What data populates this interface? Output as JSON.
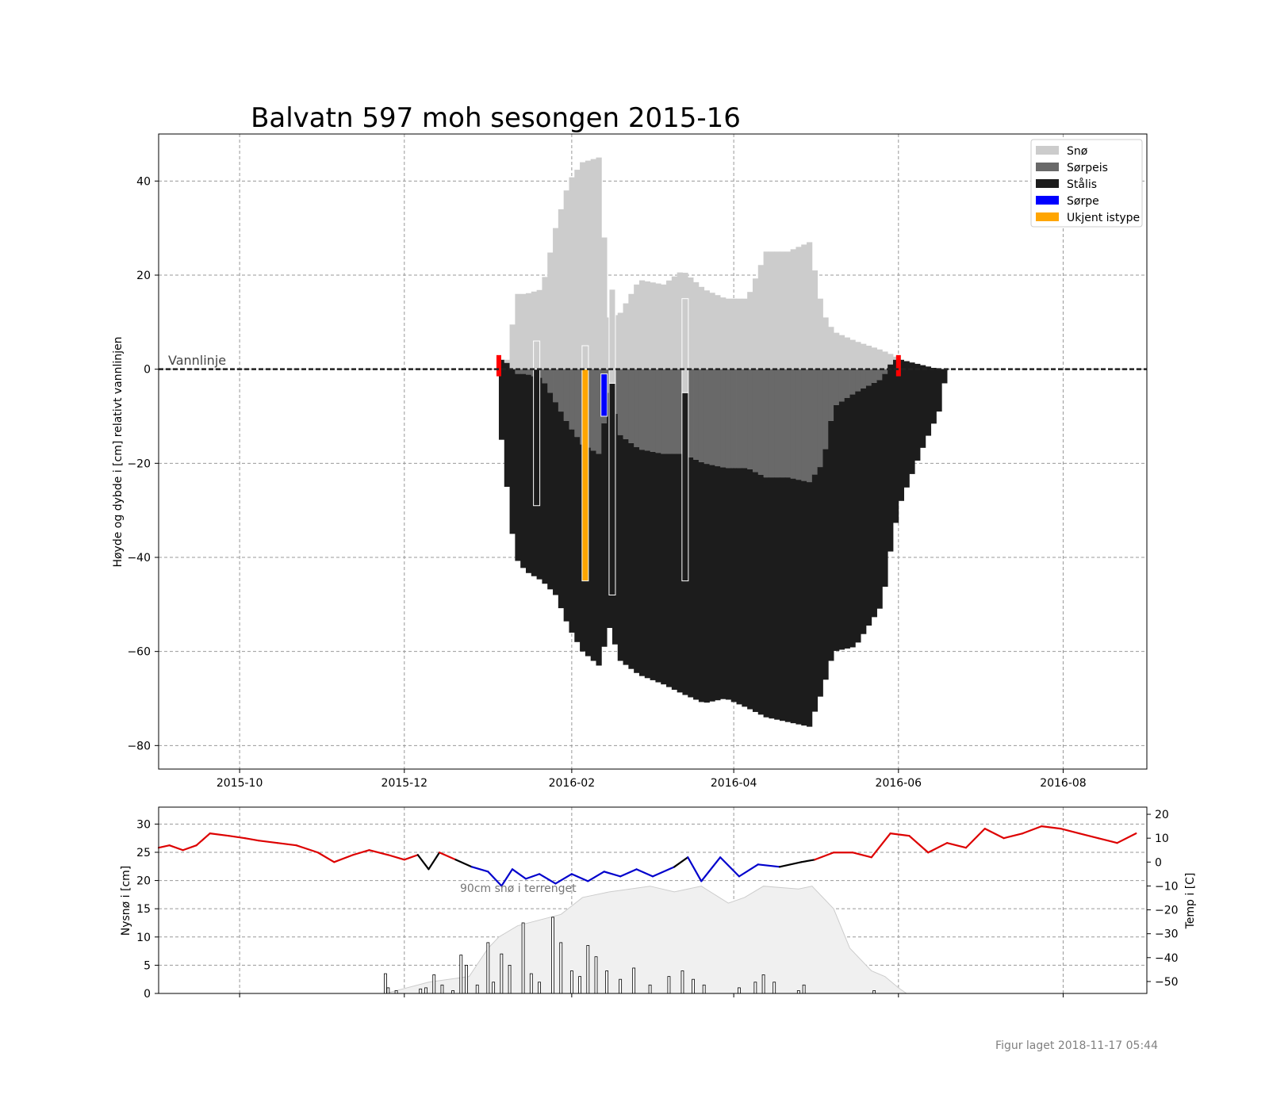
{
  "figure": {
    "title": "Balvatn 597 moh sesongen 2015-16",
    "footer": "Figur laget 2018-11-17 05:44",
    "waterline_label": "Vannlinje",
    "annotation": "90cm snø i terrenget"
  },
  "chart_data": [
    {
      "type": "bar",
      "name": "ice-profile",
      "ylabel": "Høyde og dybde i [cm] relativt vannlinjen",
      "xlim": [
        "2015-09-01",
        "2016-09-01"
      ],
      "ylim": [
        -85,
        50
      ],
      "xticks": [
        {
          "date": "2015-10-01",
          "label": "2015-10"
        },
        {
          "date": "2015-12-01",
          "label": "2015-12"
        },
        {
          "date": "2016-02-01",
          "label": "2016-02"
        },
        {
          "date": "2016-04-01",
          "label": "2016-04"
        },
        {
          "date": "2016-06-01",
          "label": "2016-06"
        },
        {
          "date": "2016-08-01",
          "label": "2016-08"
        }
      ],
      "yticks": [
        40,
        20,
        0,
        -20,
        -40,
        -60,
        -80
      ],
      "grid": true,
      "legend_position": "top-right",
      "legend": [
        {
          "label": "Snø",
          "color": "#cccccc"
        },
        {
          "label": "Sørpeis",
          "color": "#696969"
        },
        {
          "label": "Stålis",
          "color": "#1c1c1c"
        },
        {
          "label": "Sørpe",
          "color": "#0000ff"
        },
        {
          "label": "Ukjent istype",
          "color": "#ffa500"
        }
      ],
      "colors": {
        "snow": "#cccccc",
        "slush_ice": "#696969",
        "black_ice": "#1c1c1c",
        "slush": "#0000ff",
        "unknown": "#ffa500",
        "ice_event": "#ff0000"
      },
      "ice_events": [
        "2016-01-05",
        "2016-06-01"
      ],
      "profile_points": [
        {
          "date": "2016-01-05",
          "snow_top": 0,
          "slush_bottom": 2,
          "ice_bottom": -15
        },
        {
          "date": "2016-01-08",
          "snow_top": 3,
          "slush_bottom": 1,
          "ice_bottom": -30
        },
        {
          "date": "2016-01-10",
          "snow_top": 16,
          "slush_bottom": -1,
          "ice_bottom": -40
        },
        {
          "date": "2016-01-14",
          "snow_top": 16,
          "slush_bottom": -1,
          "ice_bottom": -43
        },
        {
          "date": "2016-01-20",
          "snow_top": 17,
          "slush_bottom": -2,
          "ice_bottom": -45
        },
        {
          "date": "2016-01-25",
          "snow_top": 30,
          "slush_bottom": -7,
          "ice_bottom": -48
        },
        {
          "date": "2016-01-30",
          "snow_top": 40,
          "slush_bottom": -12,
          "ice_bottom": -55
        },
        {
          "date": "2016-02-04",
          "snow_top": 44,
          "slush_bottom": -16,
          "ice_bottom": -60
        },
        {
          "date": "2016-02-10",
          "snow_top": 45,
          "slush_bottom": -18,
          "ice_bottom": -63
        },
        {
          "date": "2016-02-14",
          "snow_top": 11,
          "slush_bottom": -5,
          "ice_bottom": -55
        },
        {
          "date": "2016-02-18",
          "snow_top": 12,
          "slush_bottom": -14,
          "ice_bottom": -62
        },
        {
          "date": "2016-02-25",
          "snow_top": 19,
          "slush_bottom": -17,
          "ice_bottom": -65
        },
        {
          "date": "2016-03-05",
          "snow_top": 18,
          "slush_bottom": -18,
          "ice_bottom": -67
        },
        {
          "date": "2016-03-12",
          "snow_top": 21,
          "slush_bottom": -18,
          "ice_bottom": -69
        },
        {
          "date": "2016-03-20",
          "snow_top": 17,
          "slush_bottom": -20,
          "ice_bottom": -71
        },
        {
          "date": "2016-03-28",
          "snow_top": 15,
          "slush_bottom": -21,
          "ice_bottom": -70
        },
        {
          "date": "2016-04-05",
          "snow_top": 15,
          "slush_bottom": -21,
          "ice_bottom": -72
        },
        {
          "date": "2016-04-12",
          "snow_top": 25,
          "slush_bottom": -23,
          "ice_bottom": -74
        },
        {
          "date": "2016-04-20",
          "snow_top": 25,
          "slush_bottom": -23,
          "ice_bottom": -75
        },
        {
          "date": "2016-04-28",
          "snow_top": 27,
          "slush_bottom": -24,
          "ice_bottom": -76
        },
        {
          "date": "2016-05-03",
          "snow_top": 12,
          "slush_bottom": -20,
          "ice_bottom": -68
        },
        {
          "date": "2016-05-07",
          "snow_top": 8,
          "slush_bottom": -8,
          "ice_bottom": -60
        },
        {
          "date": "2016-05-15",
          "snow_top": 6,
          "slush_bottom": -5,
          "ice_bottom": -59
        },
        {
          "date": "2016-05-25",
          "snow_top": 4,
          "slush_bottom": -2,
          "ice_bottom": -50
        },
        {
          "date": "2016-05-29",
          "snow_top": 3,
          "slush_bottom": 2,
          "ice_bottom": -35
        },
        {
          "date": "2016-06-01",
          "snow_top": 2,
          "slush_bottom": 2,
          "ice_bottom": -28
        },
        {
          "date": "2016-06-08",
          "snow_top": 1,
          "slush_bottom": 1,
          "ice_bottom": -18
        },
        {
          "date": "2016-06-15",
          "snow_top": 0,
          "slush_bottom": 0,
          "ice_bottom": -9
        },
        {
          "date": "2016-06-18",
          "snow_top": 0,
          "slush_bottom": 0,
          "ice_bottom": 0
        }
      ],
      "measurement_columns": [
        {
          "date": "2016-01-19",
          "layers": [
            {
              "from": 6,
              "to": 0,
              "kind": "snow"
            },
            {
              "from": 0,
              "to": -29,
              "kind": "black_ice"
            }
          ]
        },
        {
          "date": "2016-02-06",
          "layers": [
            {
              "from": 5,
              "to": 0,
              "kind": "snow"
            },
            {
              "from": 0,
              "to": -45,
              "kind": "unknown"
            }
          ]
        },
        {
          "date": "2016-02-13",
          "layers": [
            {
              "from": -1,
              "to": -10,
              "kind": "slush"
            }
          ]
        },
        {
          "date": "2016-02-16",
          "layers": [
            {
              "from": 17,
              "to": -3,
              "kind": "snow"
            },
            {
              "from": -3,
              "to": -48,
              "kind": "black_ice"
            }
          ]
        },
        {
          "date": "2016-03-14",
          "layers": [
            {
              "from": 15,
              "to": -5,
              "kind": "snow"
            },
            {
              "from": -5,
              "to": -45,
              "kind": "black_ice"
            }
          ]
        }
      ]
    },
    {
      "type": "bar",
      "name": "weather",
      "ylabel": "Nysnø i [cm]",
      "y2label": "Temp i [C]",
      "ylim": [
        0,
        33
      ],
      "y2lim": [
        -55,
        23
      ],
      "yticks": [
        0,
        5,
        10,
        15,
        20,
        25,
        30
      ],
      "y2ticks": [
        20,
        10,
        0,
        -10,
        -20,
        -30,
        -40,
        -50
      ],
      "grid": true,
      "colors": {
        "temp_warm": "#dd0000",
        "temp_cold": "#0000cc",
        "temp_near_zero": "#000000",
        "snow_depth_fill": "#f0f0f0",
        "snow_depth_line": "#cccccc"
      },
      "new_snow": [
        {
          "date": "2015-11-24",
          "cm": 3.5
        },
        {
          "date": "2015-11-25",
          "cm": 1
        },
        {
          "date": "2015-11-28",
          "cm": 0.5
        },
        {
          "date": "2015-12-07",
          "cm": 0.8
        },
        {
          "date": "2015-12-09",
          "cm": 1
        },
        {
          "date": "2015-12-12",
          "cm": 3.3
        },
        {
          "date": "2015-12-15",
          "cm": 1.5
        },
        {
          "date": "2015-12-19",
          "cm": 0.5
        },
        {
          "date": "2015-12-22",
          "cm": 6.8
        },
        {
          "date": "2015-12-24",
          "cm": 5
        },
        {
          "date": "2015-12-28",
          "cm": 1.5
        },
        {
          "date": "2016-01-01",
          "cm": 9
        },
        {
          "date": "2016-01-03",
          "cm": 2
        },
        {
          "date": "2016-01-06",
          "cm": 7
        },
        {
          "date": "2016-01-09",
          "cm": 5
        },
        {
          "date": "2016-01-14",
          "cm": 12.5
        },
        {
          "date": "2016-01-17",
          "cm": 3.5
        },
        {
          "date": "2016-01-20",
          "cm": 2
        },
        {
          "date": "2016-01-25",
          "cm": 13.5
        },
        {
          "date": "2016-01-28",
          "cm": 9
        },
        {
          "date": "2016-02-01",
          "cm": 4
        },
        {
          "date": "2016-02-04",
          "cm": 3
        },
        {
          "date": "2016-02-07",
          "cm": 8.5
        },
        {
          "date": "2016-02-10",
          "cm": 6.5
        },
        {
          "date": "2016-02-14",
          "cm": 4
        },
        {
          "date": "2016-02-19",
          "cm": 2.5
        },
        {
          "date": "2016-02-24",
          "cm": 4.5
        },
        {
          "date": "2016-03-01",
          "cm": 1.5
        },
        {
          "date": "2016-03-08",
          "cm": 3
        },
        {
          "date": "2016-03-13",
          "cm": 4
        },
        {
          "date": "2016-03-17",
          "cm": 2.5
        },
        {
          "date": "2016-03-21",
          "cm": 1.5
        },
        {
          "date": "2016-04-03",
          "cm": 1
        },
        {
          "date": "2016-04-09",
          "cm": 2
        },
        {
          "date": "2016-04-12",
          "cm": 3.3
        },
        {
          "date": "2016-04-16",
          "cm": 2
        },
        {
          "date": "2016-04-25",
          "cm": 0.5
        },
        {
          "date": "2016-04-27",
          "cm": 1.5
        },
        {
          "date": "2016-05-23",
          "cm": 0.5
        }
      ],
      "snow_depth": [
        {
          "date": "2015-11-24",
          "cm": 0
        },
        {
          "date": "2015-12-10",
          "cm": 2
        },
        {
          "date": "2015-12-25",
          "cm": 3
        },
        {
          "date": "2016-01-01",
          "cm": 8
        },
        {
          "date": "2016-01-05",
          "cm": 10
        },
        {
          "date": "2016-01-12",
          "cm": 12
        },
        {
          "date": "2016-01-20",
          "cm": 13
        },
        {
          "date": "2016-01-28",
          "cm": 14
        },
        {
          "date": "2016-02-05",
          "cm": 17
        },
        {
          "date": "2016-02-15",
          "cm": 18
        },
        {
          "date": "2016-03-01",
          "cm": 19
        },
        {
          "date": "2016-03-10",
          "cm": 18
        },
        {
          "date": "2016-03-20",
          "cm": 19
        },
        {
          "date": "2016-03-30",
          "cm": 16
        },
        {
          "date": "2016-04-05",
          "cm": 17
        },
        {
          "date": "2016-04-12",
          "cm": 19
        },
        {
          "date": "2016-04-25",
          "cm": 18.5
        },
        {
          "date": "2016-04-30",
          "cm": 19
        },
        {
          "date": "2016-05-08",
          "cm": 15
        },
        {
          "date": "2016-05-14",
          "cm": 8
        },
        {
          "date": "2016-05-22",
          "cm": 4
        },
        {
          "date": "2016-05-27",
          "cm": 3
        },
        {
          "date": "2016-06-01",
          "cm": 1
        },
        {
          "date": "2016-06-04",
          "cm": 0
        }
      ],
      "temperature": [
        {
          "date": "2015-09-01",
          "c": 6
        },
        {
          "date": "2015-09-05",
          "c": 7
        },
        {
          "date": "2015-09-10",
          "c": 5
        },
        {
          "date": "2015-09-15",
          "c": 7
        },
        {
          "date": "2015-09-20",
          "c": 12
        },
        {
          "date": "2015-09-27",
          "c": 11
        },
        {
          "date": "2015-10-03",
          "c": 10
        },
        {
          "date": "2015-10-08",
          "c": 9
        },
        {
          "date": "2015-10-15",
          "c": 8
        },
        {
          "date": "2015-10-22",
          "c": 7
        },
        {
          "date": "2015-10-30",
          "c": 4
        },
        {
          "date": "2015-11-05",
          "c": 0
        },
        {
          "date": "2015-11-12",
          "c": 3
        },
        {
          "date": "2015-11-18",
          "c": 5
        },
        {
          "date": "2015-11-25",
          "c": 3
        },
        {
          "date": "2015-12-01",
          "c": 1
        },
        {
          "date": "2015-12-06",
          "c": 3
        },
        {
          "date": "2015-12-10",
          "c": -3
        },
        {
          "date": "2015-12-14",
          "c": 4
        },
        {
          "date": "2015-12-20",
          "c": 1
        },
        {
          "date": "2015-12-26",
          "c": -2
        },
        {
          "date": "2016-01-01",
          "c": -4
        },
        {
          "date": "2016-01-06",
          "c": -10
        },
        {
          "date": "2016-01-10",
          "c": -3
        },
        {
          "date": "2016-01-15",
          "c": -7
        },
        {
          "date": "2016-01-20",
          "c": -5
        },
        {
          "date": "2016-01-26",
          "c": -9
        },
        {
          "date": "2016-02-01",
          "c": -5
        },
        {
          "date": "2016-02-07",
          "c": -8
        },
        {
          "date": "2016-02-13",
          "c": -4
        },
        {
          "date": "2016-02-19",
          "c": -6
        },
        {
          "date": "2016-02-25",
          "c": -3
        },
        {
          "date": "2016-03-02",
          "c": -6
        },
        {
          "date": "2016-03-10",
          "c": -2
        },
        {
          "date": "2016-03-15",
          "c": 2
        },
        {
          "date": "2016-03-20",
          "c": -8
        },
        {
          "date": "2016-03-27",
          "c": 2
        },
        {
          "date": "2016-04-03",
          "c": -6
        },
        {
          "date": "2016-04-10",
          "c": -1
        },
        {
          "date": "2016-04-18",
          "c": -2
        },
        {
          "date": "2016-04-26",
          "c": 0
        },
        {
          "date": "2016-05-01",
          "c": 1
        },
        {
          "date": "2016-05-08",
          "c": 4
        },
        {
          "date": "2016-05-15",
          "c": 4
        },
        {
          "date": "2016-05-22",
          "c": 2
        },
        {
          "date": "2016-05-29",
          "c": 12
        },
        {
          "date": "2016-06-05",
          "c": 11
        },
        {
          "date": "2016-06-12",
          "c": 4
        },
        {
          "date": "2016-06-19",
          "c": 8
        },
        {
          "date": "2016-06-26",
          "c": 6
        },
        {
          "date": "2016-07-03",
          "c": 14
        },
        {
          "date": "2016-07-10",
          "c": 10
        },
        {
          "date": "2016-07-17",
          "c": 12
        },
        {
          "date": "2016-07-24",
          "c": 15
        },
        {
          "date": "2016-07-31",
          "c": 14
        },
        {
          "date": "2016-08-07",
          "c": 12
        },
        {
          "date": "2016-08-14",
          "c": 10
        },
        {
          "date": "2016-08-21",
          "c": 8
        },
        {
          "date": "2016-08-28",
          "c": 12
        }
      ]
    }
  ]
}
